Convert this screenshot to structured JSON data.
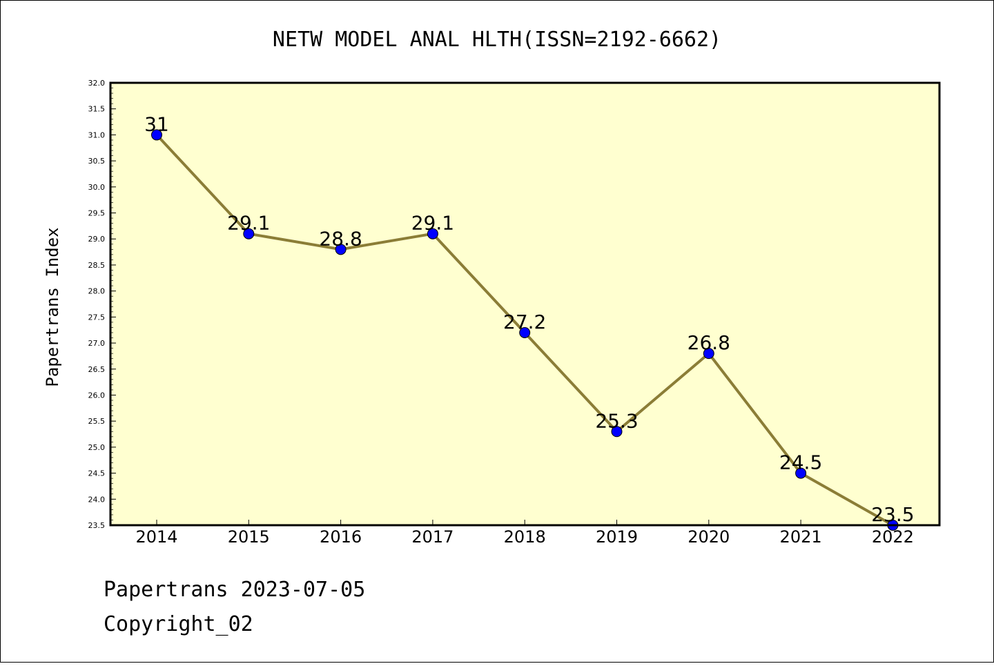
{
  "chart_data": {
    "type": "line",
    "title": "NETW MODEL ANAL HLTH(ISSN=2192-6662)",
    "xlabel": "",
    "ylabel": "Papertrans Index",
    "categories": [
      "2014",
      "2015",
      "2016",
      "2017",
      "2018",
      "2019",
      "2020",
      "2021",
      "2022"
    ],
    "values": [
      31,
      29.1,
      28.8,
      29.1,
      27.2,
      25.3,
      26.8,
      24.5,
      23.5
    ],
    "data_labels": [
      "31",
      "29.1",
      "28.8",
      "29.1",
      "27.2",
      "25.3",
      "26.8",
      "24.5",
      "23.5"
    ],
    "ylim": [
      23.5,
      32.0
    ],
    "yticks": [
      "23.5",
      "24.0",
      "24.5",
      "25.0",
      "25.5",
      "26.0",
      "26.5",
      "27.0",
      "27.5",
      "28.0",
      "28.5",
      "29.0",
      "29.5",
      "30.0",
      "30.5",
      "31.0",
      "31.5",
      "32.0"
    ],
    "grid": false,
    "colors": {
      "plot_background": "#ffffd0",
      "line": "#8b7d36",
      "marker": "#0000ff",
      "marker_edge": "#000000"
    }
  },
  "footer": {
    "line1": "Papertrans 2023-07-05",
    "line2": "Copyright_02"
  }
}
